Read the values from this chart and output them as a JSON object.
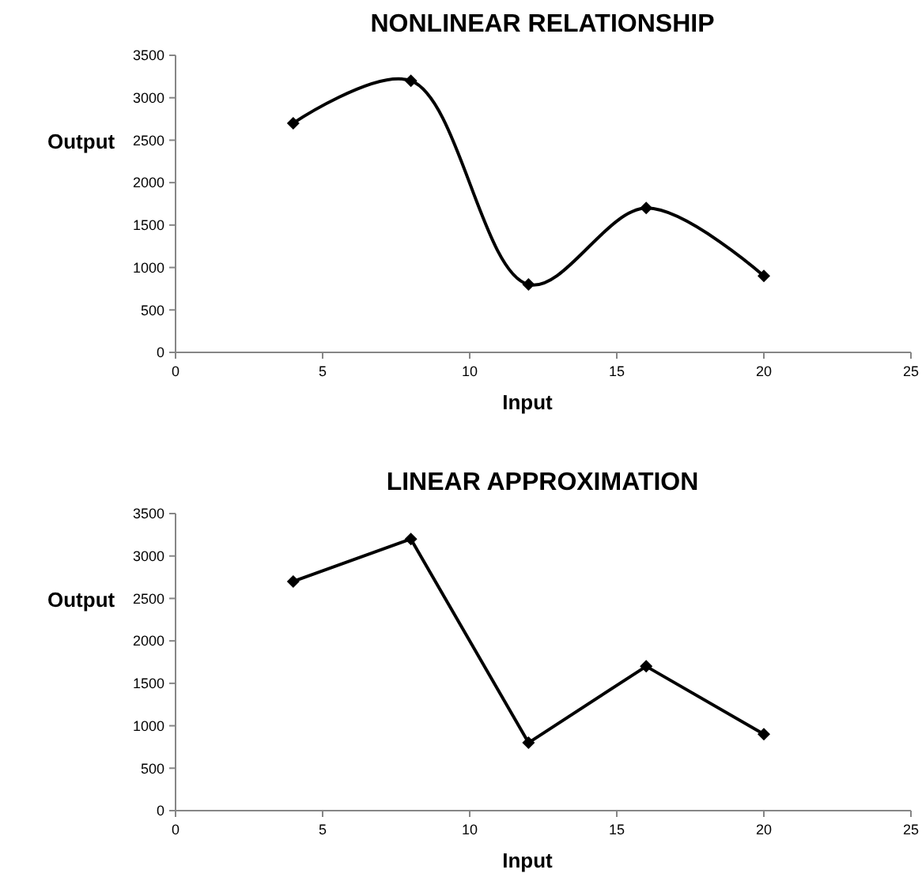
{
  "chart_data": [
    {
      "type": "line",
      "title": "NONLINEAR RELATIONSHIP",
      "xlabel": "Input",
      "ylabel": "Output",
      "x": [
        4,
        8,
        12,
        16,
        20
      ],
      "series": [
        {
          "color": "#000000",
          "values": [
            2700,
            3200,
            800,
            1700,
            900
          ]
        }
      ],
      "xlim": [
        0,
        25
      ],
      "xticks": [
        0,
        5,
        10,
        15,
        20,
        25
      ],
      "ylim": [
        0,
        3500
      ],
      "yticks": [
        0,
        500,
        1000,
        1500,
        2000,
        2500,
        3000,
        3500
      ],
      "grid": false,
      "marker": "diamond",
      "line_style": "solid"
    },
    {
      "type": "line",
      "title": "LINEAR APPROXIMATION",
      "xlabel": "Input",
      "ylabel": "Output",
      "x": [
        4,
        8,
        12,
        16,
        20
      ],
      "series": [
        {
          "color": "#000000",
          "values": [
            2700,
            3200,
            800,
            1700,
            900
          ]
        }
      ],
      "xlim": [
        0,
        25
      ],
      "xticks": [
        0,
        5,
        10,
        15,
        20,
        25
      ],
      "ylim": [
        0,
        3500
      ],
      "yticks": [
        0,
        500,
        1000,
        1500,
        2000,
        2500,
        3000,
        3500
      ],
      "grid": false,
      "marker": "diamond",
      "line_style": "solid"
    }
  ]
}
